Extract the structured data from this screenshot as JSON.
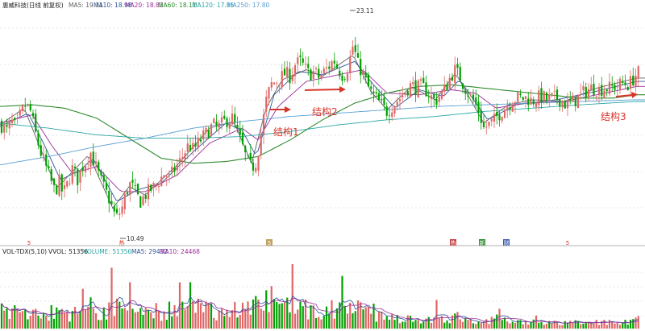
{
  "header": {
    "stock_name": "惠威科技(日线 前复权)",
    "ma5": "MA5: 19.31",
    "ma10": "MA10: 18.98",
    "ma20": "MA20: 18.82",
    "ma60": "MA60: 18.11",
    "ma120": "MA120: 17.85",
    "ma250": "MA250: 17.80"
  },
  "volume_header": {
    "title": "VOL-TDX(5,10)",
    "vvol": "VVOL: 51356",
    "volume": "VOLUME: 51356",
    "ma5": "MA5: 29432",
    "ma10": "MA10: 24468"
  },
  "annotations": {
    "high_label": "23.11",
    "low_label": "10.49",
    "structure1": "结构1",
    "structure2": "结构2",
    "structure3": "结构3"
  },
  "markers": [
    "5",
    "热",
    "5",
    "热",
    "新",
    "财",
    "5"
  ],
  "colors": {
    "up": "#e06666",
    "down": "#00a000",
    "ma5": "#606060",
    "ma10": "#2f5597",
    "ma20": "#9b2d9b",
    "ma60": "#2e8b2e",
    "ma120": "#2aa6a6",
    "ma250": "#5a9fd4",
    "arrow": "#d8352a",
    "grid": "#c9c9c9"
  },
  "chart_data": {
    "type": "candlestick",
    "ylim": [
      10,
      23.6
    ],
    "price_path": [
      [
        0,
        16.9
      ],
      [
        8,
        16.4
      ],
      [
        14,
        17.0
      ],
      [
        20,
        16.6
      ],
      [
        26,
        17.5
      ],
      [
        32,
        18.0
      ],
      [
        38,
        17.6
      ],
      [
        44,
        16.3
      ],
      [
        50,
        15.2
      ],
      [
        56,
        14.4
      ],
      [
        62,
        13.6
      ],
      [
        68,
        12.8
      ],
      [
        74,
        13.4
      ],
      [
        78,
        12.6
      ],
      [
        84,
        13.3
      ],
      [
        90,
        14.2
      ],
      [
        96,
        13.5
      ],
      [
        102,
        14.3
      ],
      [
        108,
        14.7
      ],
      [
        112,
        15.2
      ],
      [
        118,
        14.4
      ],
      [
        124,
        13.6
      ],
      [
        130,
        12.9
      ],
      [
        136,
        12.3
      ],
      [
        140,
        11.7
      ],
      [
        144,
        11.2
      ],
      [
        148,
        11.5
      ],
      [
        152,
        11.9
      ],
      [
        156,
        12.7
      ],
      [
        162,
        13.3
      ],
      [
        168,
        12.7
      ],
      [
        174,
        12.2
      ],
      [
        180,
        12.6
      ],
      [
        186,
        12.9
      ],
      [
        192,
        13.1
      ],
      [
        198,
        13.5
      ],
      [
        204,
        13.9
      ],
      [
        210,
        13.6
      ],
      [
        216,
        14.1
      ],
      [
        222,
        14.5
      ],
      [
        228,
        15.1
      ],
      [
        234,
        15.6
      ],
      [
        240,
        15.3
      ],
      [
        246,
        15.7
      ],
      [
        252,
        16.1
      ],
      [
        258,
        16.4
      ],
      [
        264,
        16.8
      ],
      [
        270,
        16.6
      ],
      [
        276,
        16.9
      ],
      [
        282,
        17.1
      ],
      [
        288,
        17.2
      ],
      [
        294,
        16.4
      ],
      [
        300,
        15.6
      ],
      [
        306,
        14.7
      ],
      [
        312,
        14.2
      ],
      [
        318,
        14.6
      ],
      [
        324,
        16.3
      ],
      [
        330,
        18.2
      ],
      [
        336,
        19.2
      ],
      [
        342,
        19.4
      ],
      [
        348,
        19.6
      ],
      [
        354,
        19.9
      ],
      [
        360,
        19.7
      ],
      [
        366,
        20.4
      ],
      [
        372,
        20.6
      ],
      [
        378,
        20.2
      ],
      [
        384,
        19.8
      ],
      [
        390,
        20.0
      ],
      [
        396,
        19.6
      ],
      [
        402,
        20.0
      ],
      [
        408,
        20.3
      ],
      [
        414,
        20.7
      ],
      [
        420,
        20.1
      ],
      [
        426,
        19.7
      ],
      [
        432,
        20.3
      ],
      [
        438,
        21.6
      ],
      [
        444,
        20.4
      ],
      [
        450,
        19.9
      ],
      [
        456,
        19.1
      ],
      [
        462,
        18.6
      ],
      [
        468,
        18.3
      ],
      [
        474,
        17.9
      ],
      [
        480,
        17.6
      ],
      [
        486,
        17.9
      ],
      [
        492,
        18.2
      ],
      [
        498,
        18.5
      ],
      [
        504,
        18.9
      ],
      [
        510,
        19.2
      ],
      [
        516,
        19.0
      ],
      [
        522,
        19.1
      ],
      [
        528,
        18.9
      ],
      [
        534,
        18.5
      ],
      [
        540,
        18.2
      ],
      [
        546,
        18.6
      ],
      [
        552,
        18.9
      ],
      [
        558,
        19.6
      ],
      [
        564,
        20.1
      ],
      [
        570,
        19.7
      ],
      [
        576,
        19.1
      ],
      [
        582,
        18.6
      ],
      [
        588,
        18.2
      ],
      [
        594,
        17.6
      ],
      [
        600,
        16.6
      ],
      [
        606,
        16.8
      ],
      [
        612,
        17.0
      ],
      [
        618,
        17.4
      ],
      [
        624,
        17.7
      ],
      [
        630,
        18.0
      ],
      [
        636,
        18.3
      ],
      [
        642,
        18.4
      ],
      [
        648,
        18.4
      ],
      [
        654,
        18.4
      ],
      [
        660,
        18.2
      ],
      [
        666,
        18.4
      ],
      [
        672,
        18.5
      ],
      [
        678,
        18.3
      ],
      [
        684,
        18.4
      ],
      [
        690,
        18.4
      ],
      [
        696,
        18.3
      ],
      [
        702,
        18.0
      ],
      [
        708,
        18.1
      ],
      [
        714,
        18.3
      ],
      [
        720,
        18.6
      ],
      [
        726,
        18.8
      ],
      [
        732,
        19.0
      ],
      [
        738,
        19.0
      ],
      [
        744,
        18.9
      ],
      [
        750,
        19.0
      ],
      [
        756,
        19.0
      ],
      [
        762,
        19.1
      ],
      [
        768,
        19.2
      ],
      [
        774,
        19.3
      ],
      [
        780,
        19.2
      ],
      [
        786,
        19.6
      ],
      [
        790,
        19.9
      ]
    ],
    "moving_averages": {
      "ma5": [
        [
          0,
          16.8
        ],
        [
          30,
          17.8
        ],
        [
          50,
          15.4
        ],
        [
          70,
          13.0
        ],
        [
          90,
          14.0
        ],
        [
          110,
          15.0
        ],
        [
          140,
          11.8
        ],
        [
          160,
          13.1
        ],
        [
          180,
          12.6
        ],
        [
          220,
          14.4
        ],
        [
          260,
          16.6
        ],
        [
          290,
          17.0
        ],
        [
          312,
          14.5
        ],
        [
          330,
          17.8
        ],
        [
          350,
          19.5
        ],
        [
          380,
          20.1
        ],
        [
          400,
          19.7
        ],
        [
          438,
          21.0
        ],
        [
          460,
          18.8
        ],
        [
          480,
          17.7
        ],
        [
          510,
          19.1
        ],
        [
          540,
          18.3
        ],
        [
          565,
          19.9
        ],
        [
          600,
          16.9
        ],
        [
          630,
          18.0
        ],
        [
          660,
          18.3
        ],
        [
          700,
          18.2
        ],
        [
          740,
          19.0
        ],
        [
          790,
          19.6
        ]
      ],
      "ma10": [
        [
          0,
          16.7
        ],
        [
          35,
          17.5
        ],
        [
          55,
          15.6
        ],
        [
          75,
          13.5
        ],
        [
          100,
          14.1
        ],
        [
          115,
          14.8
        ],
        [
          145,
          12.2
        ],
        [
          170,
          12.9
        ],
        [
          200,
          13.3
        ],
        [
          240,
          15.2
        ],
        [
          280,
          16.9
        ],
        [
          300,
          16.5
        ],
        [
          318,
          14.9
        ],
        [
          340,
          18.6
        ],
        [
          370,
          20.0
        ],
        [
          400,
          19.8
        ],
        [
          440,
          20.6
        ],
        [
          465,
          19.1
        ],
        [
          490,
          17.8
        ],
        [
          520,
          18.9
        ],
        [
          550,
          18.5
        ],
        [
          570,
          19.5
        ],
        [
          605,
          17.1
        ],
        [
          640,
          18.0
        ],
        [
          690,
          18.3
        ],
        [
          730,
          18.7
        ],
        [
          790,
          19.4
        ]
      ],
      "ma20": [
        [
          0,
          16.9
        ],
        [
          40,
          17.4
        ],
        [
          65,
          15.5
        ],
        [
          90,
          13.9
        ],
        [
          120,
          14.3
        ],
        [
          150,
          12.8
        ],
        [
          180,
          12.8
        ],
        [
          220,
          13.8
        ],
        [
          260,
          15.7
        ],
        [
          300,
          16.6
        ],
        [
          320,
          15.9
        ],
        [
          345,
          17.9
        ],
        [
          380,
          19.4
        ],
        [
          420,
          19.8
        ],
        [
          450,
          20.1
        ],
        [
          480,
          18.7
        ],
        [
          520,
          18.6
        ],
        [
          560,
          18.9
        ],
        [
          590,
          18.7
        ],
        [
          615,
          17.8
        ],
        [
          650,
          18.1
        ],
        [
          700,
          18.2
        ],
        [
          740,
          18.6
        ],
        [
          790,
          19.1
        ]
      ],
      "ma60": [
        [
          0,
          17.9
        ],
        [
          40,
          18.0
        ],
        [
          80,
          17.8
        ],
        [
          120,
          17.2
        ],
        [
          160,
          16.0
        ],
        [
          200,
          14.8
        ],
        [
          240,
          14.5
        ],
        [
          280,
          14.6
        ],
        [
          320,
          14.9
        ],
        [
          360,
          15.9
        ],
        [
          400,
          17.1
        ],
        [
          440,
          18.1
        ],
        [
          480,
          18.7
        ],
        [
          520,
          19.1
        ],
        [
          560,
          19.2
        ],
        [
          600,
          19.0
        ],
        [
          640,
          18.8
        ],
        [
          680,
          18.6
        ],
        [
          720,
          18.4
        ],
        [
          760,
          18.4
        ],
        [
          790,
          18.6
        ]
      ],
      "ma120": [
        [
          0,
          16.9
        ],
        [
          60,
          16.6
        ],
        [
          120,
          16.2
        ],
        [
          180,
          16.0
        ],
        [
          240,
          16.0
        ],
        [
          300,
          16.1
        ],
        [
          360,
          16.4
        ],
        [
          420,
          16.8
        ],
        [
          480,
          17.1
        ],
        [
          540,
          17.3
        ],
        [
          600,
          17.6
        ],
        [
          660,
          17.8
        ],
        [
          720,
          18.0
        ],
        [
          790,
          18.2
        ]
      ],
      "ma250": [
        [
          0,
          14.4
        ],
        [
          60,
          14.9
        ],
        [
          120,
          15.5
        ],
        [
          180,
          16.0
        ],
        [
          240,
          16.6
        ],
        [
          300,
          17.0
        ],
        [
          360,
          17.3
        ],
        [
          420,
          17.5
        ],
        [
          480,
          17.7
        ],
        [
          540,
          17.9
        ],
        [
          600,
          18.0
        ],
        [
          660,
          18.1
        ],
        [
          720,
          18.2
        ],
        [
          790,
          18.3
        ]
      ]
    },
    "volume": {
      "ylim": [
        0,
        100000
      ],
      "wave": [
        [
          0,
          26000
        ],
        [
          40,
          21000
        ],
        [
          80,
          19000
        ],
        [
          120,
          23000
        ],
        [
          160,
          30000
        ],
        [
          200,
          24000
        ],
        [
          240,
          28000
        ],
        [
          280,
          24000
        ],
        [
          320,
          35000
        ],
        [
          340,
          42000
        ],
        [
          370,
          30000
        ],
        [
          400,
          23000
        ],
        [
          440,
          27000
        ],
        [
          470,
          20000
        ],
        [
          500,
          15000
        ],
        [
          540,
          12000
        ],
        [
          570,
          16000
        ],
        [
          600,
          13000
        ],
        [
          640,
          9000
        ],
        [
          680,
          8000
        ],
        [
          720,
          8000
        ],
        [
          760,
          9000
        ],
        [
          790,
          13000
        ]
      ]
    }
  }
}
